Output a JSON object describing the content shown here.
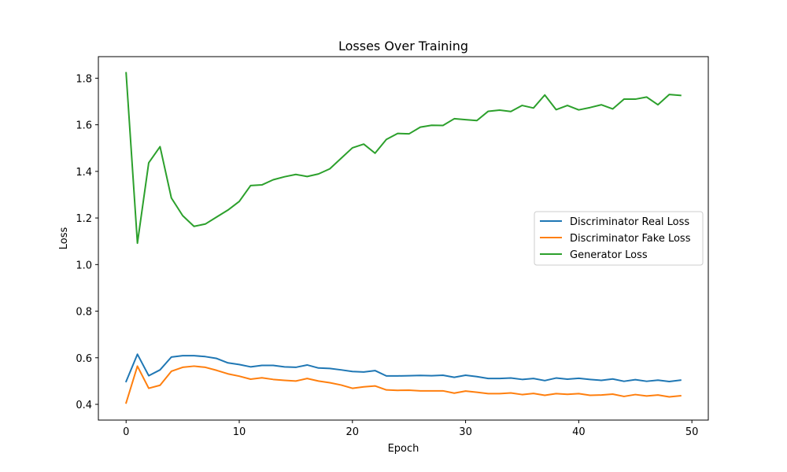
{
  "chart_data": {
    "type": "line",
    "title": "Losses Over Training",
    "xlabel": "Epoch",
    "ylabel": "Loss",
    "xlim": [
      -2.45,
      51.45
    ],
    "ylim": [
      0.3325,
      1.8925
    ],
    "xticks": [
      0,
      10,
      20,
      30,
      40,
      50
    ],
    "yticks": [
      0.4,
      0.6,
      0.8,
      1.0,
      1.2,
      1.4,
      1.6,
      1.8
    ],
    "ytick_labels": [
      "0.4",
      "0.6",
      "0.8",
      "1.0",
      "1.2",
      "1.4",
      "1.6",
      "1.8"
    ],
    "grid": false,
    "legend_position": "center-right",
    "x": [
      0,
      1,
      2,
      3,
      4,
      5,
      6,
      7,
      8,
      9,
      10,
      11,
      12,
      13,
      14,
      15,
      16,
      17,
      18,
      19,
      20,
      21,
      22,
      23,
      24,
      25,
      26,
      27,
      28,
      29,
      30,
      31,
      32,
      33,
      34,
      35,
      36,
      37,
      38,
      39,
      40,
      41,
      42,
      43,
      44,
      45,
      46,
      47,
      48,
      49
    ],
    "series": [
      {
        "name": "Discriminator Real Loss",
        "color": "#1f77b4",
        "values": [
          0.498,
          0.615,
          0.523,
          0.548,
          0.603,
          0.609,
          0.609,
          0.605,
          0.597,
          0.578,
          0.571,
          0.561,
          0.567,
          0.567,
          0.561,
          0.559,
          0.569,
          0.556,
          0.554,
          0.548,
          0.541,
          0.539,
          0.545,
          0.522,
          0.522,
          0.523,
          0.524,
          0.523,
          0.525,
          0.516,
          0.525,
          0.519,
          0.511,
          0.511,
          0.513,
          0.507,
          0.511,
          0.502,
          0.513,
          0.508,
          0.512,
          0.507,
          0.503,
          0.509,
          0.499,
          0.506,
          0.499,
          0.504,
          0.498,
          0.504
        ]
      },
      {
        "name": "Discriminator Fake Loss",
        "color": "#ff7f0e",
        "values": [
          0.406,
          0.564,
          0.469,
          0.482,
          0.542,
          0.559,
          0.564,
          0.559,
          0.546,
          0.531,
          0.521,
          0.508,
          0.514,
          0.507,
          0.503,
          0.5,
          0.511,
          0.5,
          0.493,
          0.483,
          0.469,
          0.475,
          0.479,
          0.462,
          0.46,
          0.461,
          0.458,
          0.458,
          0.458,
          0.448,
          0.457,
          0.452,
          0.446,
          0.446,
          0.449,
          0.442,
          0.447,
          0.439,
          0.446,
          0.443,
          0.446,
          0.439,
          0.44,
          0.444,
          0.434,
          0.442,
          0.436,
          0.44,
          0.432,
          0.437
        ]
      },
      {
        "name": "Generator Loss",
        "color": "#2ca02c",
        "values": [
          1.823,
          1.092,
          1.437,
          1.506,
          1.286,
          1.21,
          1.164,
          1.174,
          1.204,
          1.234,
          1.271,
          1.339,
          1.342,
          1.364,
          1.377,
          1.387,
          1.378,
          1.389,
          1.411,
          1.456,
          1.501,
          1.517,
          1.478,
          1.537,
          1.563,
          1.561,
          1.59,
          1.598,
          1.597,
          1.626,
          1.622,
          1.618,
          1.658,
          1.663,
          1.657,
          1.683,
          1.672,
          1.728,
          1.665,
          1.683,
          1.664,
          1.674,
          1.686,
          1.668,
          1.71,
          1.71,
          1.719,
          1.686,
          1.73,
          1.726
        ]
      }
    ]
  }
}
